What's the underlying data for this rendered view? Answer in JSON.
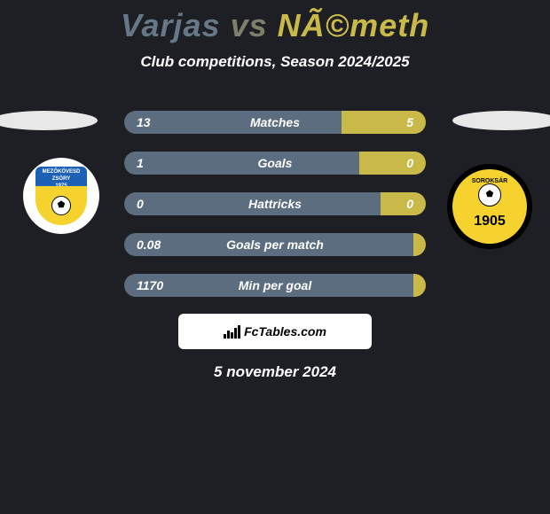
{
  "title": {
    "player_a": "Varjas",
    "vs": "vs",
    "player_b": "NÃ©meth",
    "color_a": "#6a7a8a",
    "color_vs": "#7f7e6a",
    "color_b": "#c9b948"
  },
  "subtitle": "Club competitions, Season 2024/2025",
  "club_a": {
    "name": "Mezőkövesd Zsóry",
    "badge_top_text": "MEZŐKÖVESD ZSÓRY",
    "badge_year": "1975",
    "primary": "#1c61b5",
    "secondary": "#f5d22e"
  },
  "club_b": {
    "name": "Soroksár",
    "badge_text": "SOROKSÁR",
    "badge_year": "1905",
    "ring": "#000000",
    "fill": "#f5d22e"
  },
  "stats": [
    {
      "label": "Matches",
      "a": "13",
      "b": "5",
      "a_pct": 72,
      "right_color": "#c9b948"
    },
    {
      "label": "Goals",
      "a": "1",
      "b": "0",
      "a_pct": 78,
      "right_color": "#c9b948"
    },
    {
      "label": "Hattricks",
      "a": "0",
      "b": "0",
      "a_pct": 85,
      "right_color": "#c9b948"
    },
    {
      "label": "Goals per match",
      "a": "0.08",
      "b": "",
      "a_pct": 100,
      "right_color": "#c9b948"
    },
    {
      "label": "Min per goal",
      "a": "1170",
      "b": "",
      "a_pct": 100,
      "right_color": "#c9b948"
    }
  ],
  "colors": {
    "bar_left": "#5b6d7f",
    "background": "#1e1f24",
    "text": "#ffffff"
  },
  "footer": {
    "brand": "FcTables.com",
    "date": "5 november 2024"
  }
}
